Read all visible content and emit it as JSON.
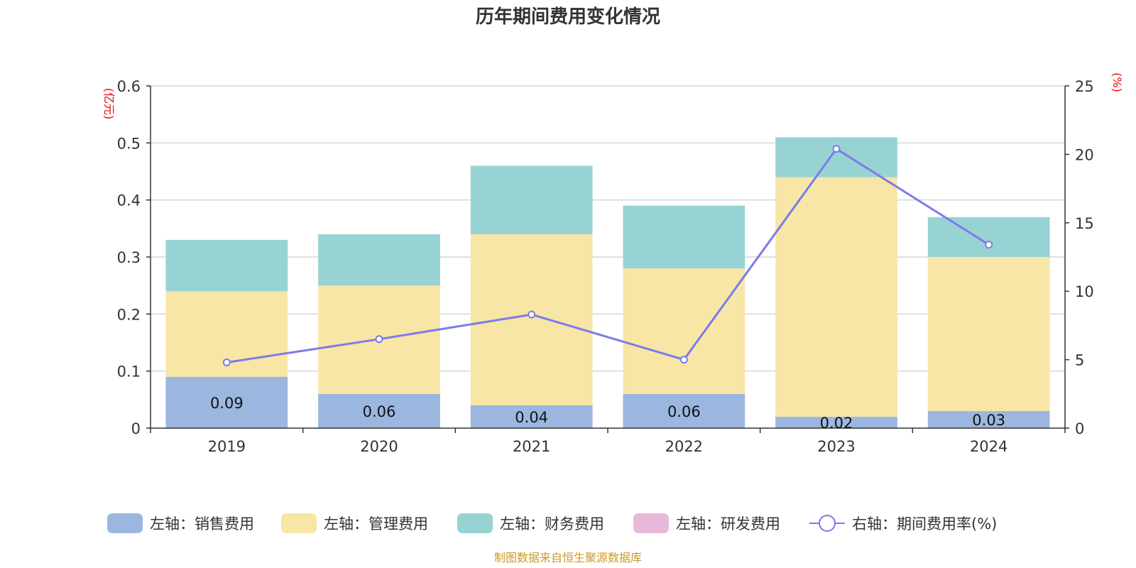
{
  "colors": {
    "sales": "#9bb7e0",
    "admin": "#f7e6a6",
    "finance": "#98d3d4",
    "rnd": "#e7b8da",
    "rate_line": "#7b7bea",
    "unit_label": "#ee0000",
    "source": "#c99a2e",
    "grid": "#cccccc",
    "axis": "#333333"
  },
  "chart_data": {
    "type": "bar",
    "title": "历年期间费用变化情况",
    "left_unit": "(亿元)",
    "right_unit": "(%)",
    "categories": [
      "2019",
      "2020",
      "2021",
      "2022",
      "2023",
      "2024"
    ],
    "left_ylim": [
      0,
      0.6
    ],
    "left_ticks": [
      "0",
      "0.1",
      "0.2",
      "0.3",
      "0.4",
      "0.5",
      "0.6"
    ],
    "right_ylim": [
      0,
      25
    ],
    "right_ticks": [
      "0",
      "5",
      "10",
      "15",
      "20",
      "25"
    ],
    "grid": true,
    "legend_position": "bottom",
    "series": [
      {
        "key": "sales",
        "name": "左轴：销售费用",
        "axis": "left",
        "kind": "bar",
        "values": [
          0.09,
          0.06,
          0.04,
          0.06,
          0.02,
          0.03
        ],
        "labels": [
          "0.09",
          "0.06",
          "0.04",
          "0.06",
          "0.02",
          "0.03"
        ]
      },
      {
        "key": "admin",
        "name": "左轴：管理费用",
        "axis": "left",
        "kind": "bar",
        "values": [
          0.15,
          0.19,
          0.3,
          0.22,
          0.42,
          0.27
        ]
      },
      {
        "key": "finance",
        "name": "左轴：财务费用",
        "axis": "left",
        "kind": "bar",
        "values": [
          0.09,
          0.09,
          0.12,
          0.11,
          0.07,
          0.07
        ]
      },
      {
        "key": "rnd",
        "name": "左轴：研发费用",
        "axis": "left",
        "kind": "bar",
        "values": [
          0,
          0,
          0,
          0,
          0,
          0
        ]
      },
      {
        "key": "rate",
        "name": "右轴：期间费用率(%)",
        "axis": "right",
        "kind": "line",
        "values": [
          4.8,
          6.5,
          8.3,
          5.0,
          20.4,
          13.4
        ]
      }
    ]
  },
  "source": "制图数据来自恒生聚源数据库"
}
